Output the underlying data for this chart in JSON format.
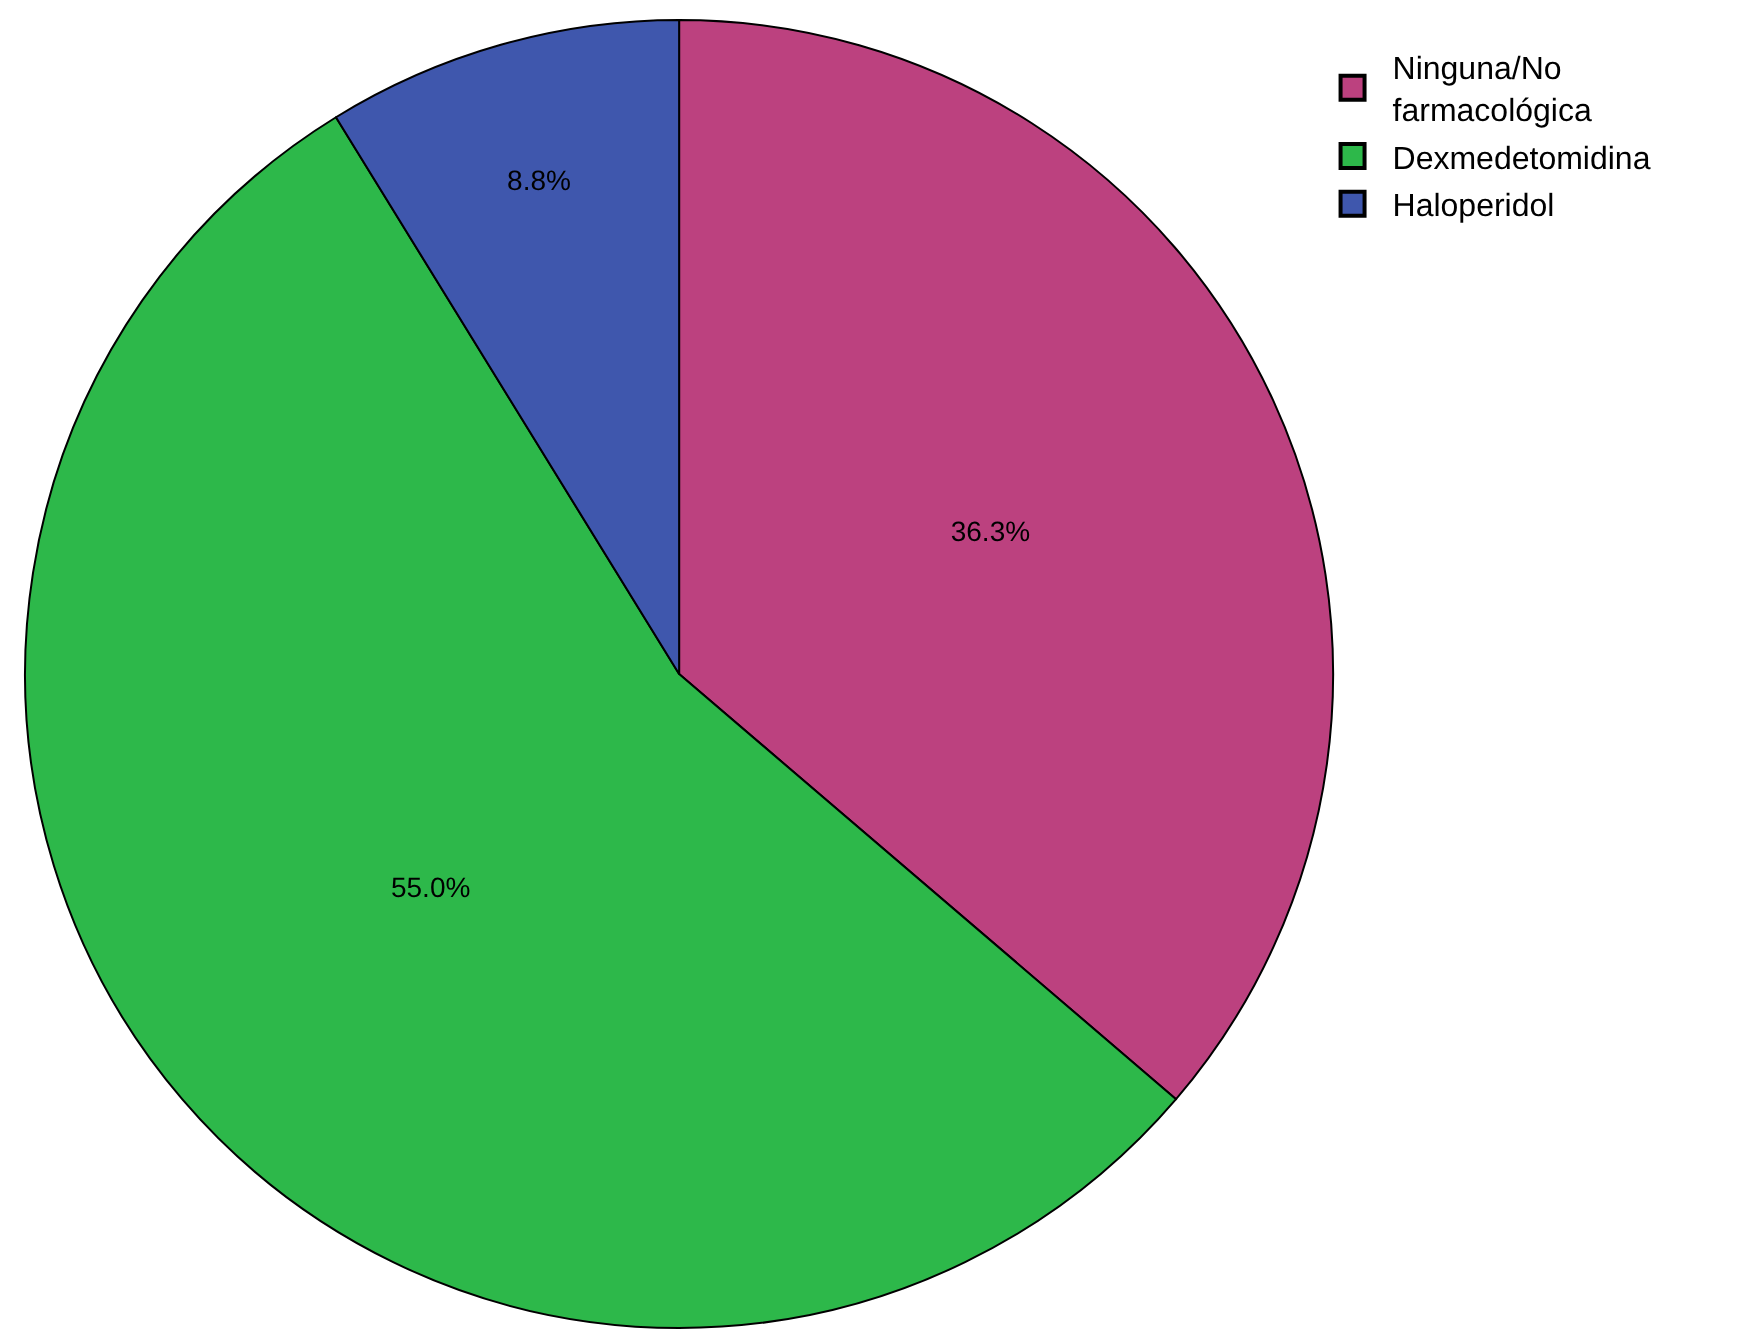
{
  "chart_data": {
    "type": "pie",
    "categories": [
      "Ninguna/No farmacológica",
      "Dexmedetomidina",
      "Haloperidol"
    ],
    "values": [
      36.3,
      55.0,
      8.8
    ],
    "value_labels": [
      "36.3%",
      "55.0%",
      "8.8%"
    ],
    "colors": [
      "#bc417f",
      "#2db84a",
      "#3f57ad"
    ],
    "legend": "top right"
  }
}
